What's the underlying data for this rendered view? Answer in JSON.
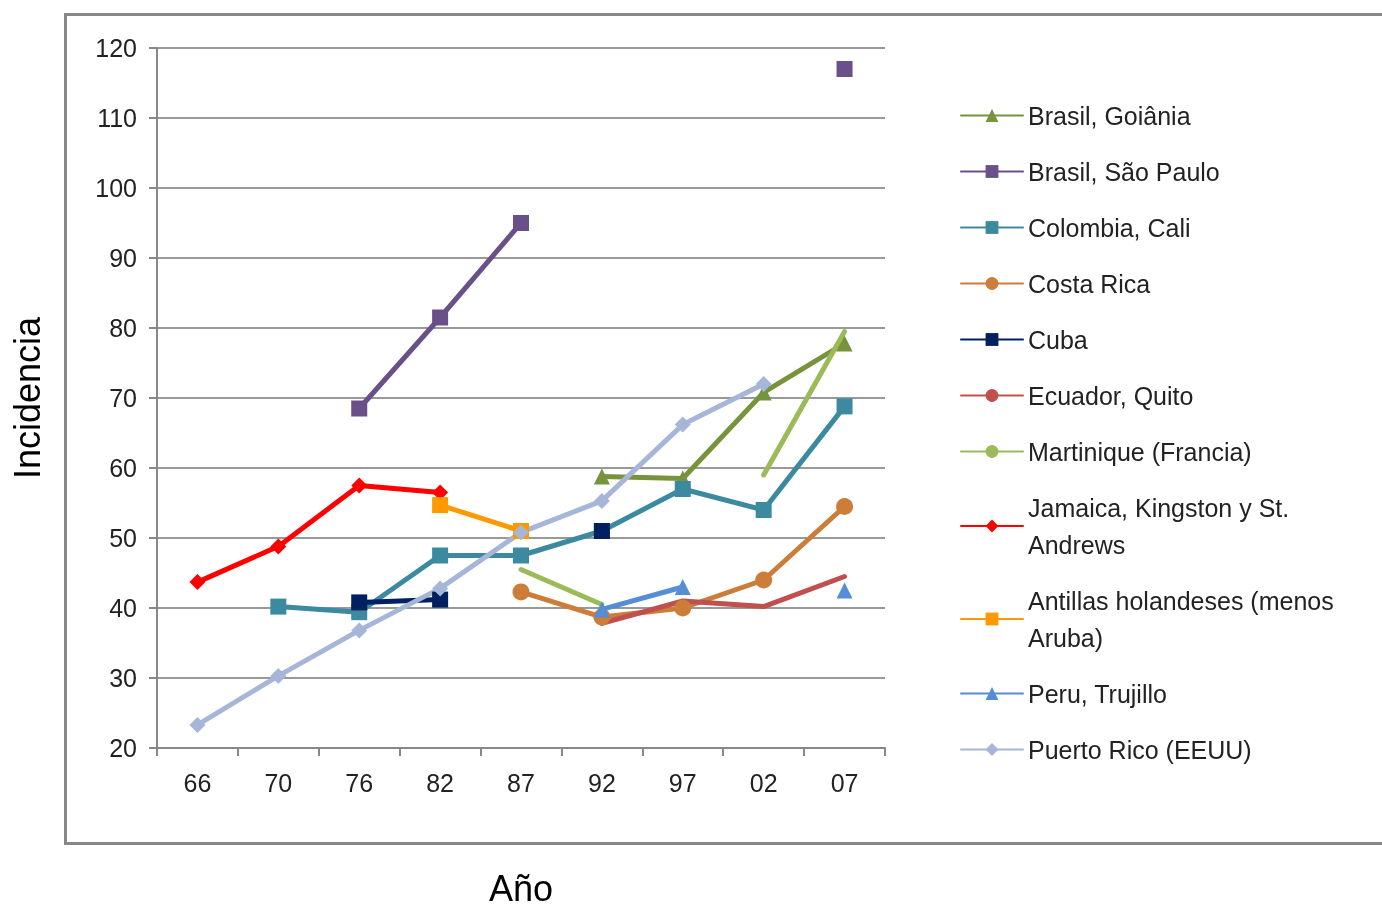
{
  "chart_data": {
    "type": "line",
    "xlabel": "Año",
    "ylabel": "Incidencia",
    "categories": [
      "66",
      "70",
      "76",
      "82",
      "87",
      "92",
      "97",
      "02",
      "07"
    ],
    "ylim": [
      20,
      120
    ],
    "yticks": [
      20,
      30,
      40,
      50,
      60,
      70,
      80,
      90,
      100,
      110,
      120
    ],
    "grid": "y",
    "legend": "right",
    "series": [
      {
        "name": "Brasil, Goiânia",
        "color": "#77933c",
        "marker": "triangle",
        "values": [
          null,
          null,
          null,
          null,
          null,
          58.8,
          58.5,
          70.8,
          77.8
        ]
      },
      {
        "name": "Brasil, São Paulo",
        "color": "#6a5088",
        "marker": "square",
        "values": [
          null,
          null,
          68.5,
          81.5,
          95,
          null,
          null,
          null,
          117
        ]
      },
      {
        "name": "Colombia, Cali",
        "color": "#3c8aa0",
        "marker": "square",
        "values": [
          null,
          40.2,
          39.4,
          47.5,
          47.5,
          51,
          57,
          54,
          68.8
        ]
      },
      {
        "name": "Costa Rica",
        "color": "#cd7d3a",
        "marker": "circle",
        "values": [
          null,
          null,
          null,
          null,
          42.3,
          38.7,
          40,
          44,
          54.5
        ]
      },
      {
        "name": "Cuba",
        "color": "#002060",
        "marker": "square",
        "values": [
          null,
          null,
          40.8,
          41.2,
          null,
          51,
          null,
          null,
          null
        ]
      },
      {
        "name": "Ecuador, Quito",
        "color": "#c0504d",
        "marker": "none",
        "values": [
          null,
          null,
          null,
          null,
          null,
          37.8,
          41,
          40.2,
          44.5
        ]
      },
      {
        "name": "Martinique (Francia)",
        "color": "#9bbb59",
        "marker": "none",
        "values": [
          null,
          null,
          null,
          null,
          45.5,
          40.5,
          null,
          59,
          79.5
        ]
      },
      {
        "name": "Jamaica, Kingston y St. Andrews",
        "color": "#ff0000",
        "marker": "diamond",
        "values": [
          43.7,
          48.8,
          57.5,
          56.5,
          null,
          null,
          null,
          null,
          null
        ]
      },
      {
        "name": "Antillas holandeses (menos Aruba)",
        "color": "#ff9900",
        "marker": "square",
        "values": [
          null,
          null,
          null,
          54.7,
          51,
          null,
          null,
          null,
          null
        ]
      },
      {
        "name": "Peru, Trujillo",
        "color": "#558ed5",
        "marker": "triangle",
        "values": [
          null,
          null,
          null,
          null,
          null,
          39.8,
          43,
          null,
          42.5
        ]
      },
      {
        "name": "Puerto Rico (EEUU)",
        "color": "#a6b6d8",
        "marker": "diamond",
        "values": [
          23.3,
          30.3,
          36.8,
          42.8,
          50.8,
          55.3,
          66.2,
          72,
          null
        ]
      }
    ]
  }
}
